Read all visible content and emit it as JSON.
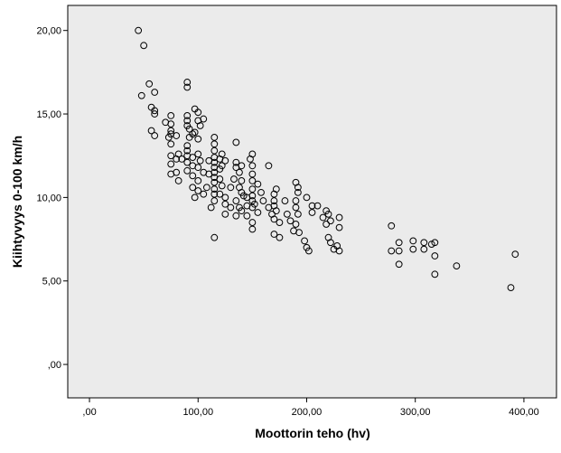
{
  "chart_data": {
    "type": "scatter",
    "xlabel": "Moottorin teho (hv)",
    "ylabel": "Kiihtyvyys 0-100 km/h",
    "xlim": [
      -20,
      430
    ],
    "ylim": [
      -2,
      21.5
    ],
    "x_ticks": [
      0,
      100,
      200,
      300,
      400
    ],
    "x_tick_labels": [
      ",00",
      "100,00",
      "200,00",
      "300,00",
      "400,00"
    ],
    "y_ticks": [
      0,
      5,
      10,
      15,
      20
    ],
    "y_tick_labels": [
      ",00",
      "5,00",
      "10,00",
      "15,00",
      "20,00"
    ],
    "grid": false,
    "colors": {
      "plot_background": "#ebebeb",
      "marker_stroke": "#000000",
      "frame": "#000000"
    },
    "series": [
      {
        "marker": "open-circle",
        "points": [
          [
            45,
            20.0
          ],
          [
            50,
            19.1
          ],
          [
            55,
            16.8
          ],
          [
            48,
            16.1
          ],
          [
            60,
            16.3
          ],
          [
            57,
            15.4
          ],
          [
            60,
            15.2
          ],
          [
            60,
            15.0
          ],
          [
            57,
            14.0
          ],
          [
            60,
            13.7
          ],
          [
            70,
            14.5
          ],
          [
            75,
            14.9
          ],
          [
            75,
            14.4
          ],
          [
            75,
            14.0
          ],
          [
            75,
            13.8
          ],
          [
            80,
            13.7
          ],
          [
            73,
            13.6
          ],
          [
            75,
            13.2
          ],
          [
            75,
            12.5
          ],
          [
            80,
            12.3
          ],
          [
            75,
            12.0
          ],
          [
            82,
            12.6
          ],
          [
            85,
            12.3
          ],
          [
            80,
            11.5
          ],
          [
            75,
            11.4
          ],
          [
            82,
            11.0
          ],
          [
            90,
            16.9
          ],
          [
            90,
            16.6
          ],
          [
            97,
            15.3
          ],
          [
            100,
            15.1
          ],
          [
            90,
            14.9
          ],
          [
            90,
            14.6
          ],
          [
            90,
            14.3
          ],
          [
            92,
            14.1
          ],
          [
            100,
            14.6
          ],
          [
            105,
            14.7
          ],
          [
            102,
            14.3
          ],
          [
            95,
            13.8
          ],
          [
            92,
            13.6
          ],
          [
            100,
            13.5
          ],
          [
            97,
            13.9
          ],
          [
            90,
            13.1
          ],
          [
            90,
            12.8
          ],
          [
            90,
            12.5
          ],
          [
            95,
            12.4
          ],
          [
            90,
            12.1
          ],
          [
            95,
            11.9
          ],
          [
            90,
            11.6
          ],
          [
            95,
            11.3
          ],
          [
            100,
            12.6
          ],
          [
            102,
            12.2
          ],
          [
            100,
            11.8
          ],
          [
            105,
            11.5
          ],
          [
            100,
            11.0
          ],
          [
            95,
            10.6
          ],
          [
            100,
            10.4
          ],
          [
            105,
            10.2
          ],
          [
            108,
            10.6
          ],
          [
            97,
            10.0
          ],
          [
            110,
            11.4
          ],
          [
            110,
            12.2
          ],
          [
            115,
            13.6
          ],
          [
            115,
            13.2
          ],
          [
            115,
            12.8
          ],
          [
            115,
            12.4
          ],
          [
            115,
            12.1
          ],
          [
            115,
            11.8
          ],
          [
            115,
            11.5
          ],
          [
            115,
            11.2
          ],
          [
            115,
            10.9
          ],
          [
            115,
            10.5
          ],
          [
            115,
            10.2
          ],
          [
            115,
            9.8
          ],
          [
            112,
            9.4
          ],
          [
            115,
            7.6
          ],
          [
            120,
            12.3
          ],
          [
            120,
            11.7
          ],
          [
            122,
            12.6
          ],
          [
            122,
            11.9
          ],
          [
            125,
            12.2
          ],
          [
            120,
            11.1
          ],
          [
            122,
            10.7
          ],
          [
            120,
            10.2
          ],
          [
            125,
            10.0
          ],
          [
            125,
            9.6
          ],
          [
            125,
            9.0
          ],
          [
            130,
            9.4
          ],
          [
            130,
            10.6
          ],
          [
            133,
            11.1
          ],
          [
            135,
            11.8
          ],
          [
            135,
            13.3
          ],
          [
            135,
            12.1
          ],
          [
            138,
            11.5
          ],
          [
            140,
            11.9
          ],
          [
            140,
            11.0
          ],
          [
            138,
            10.6
          ],
          [
            140,
            10.3
          ],
          [
            142,
            10.1
          ],
          [
            135,
            9.8
          ],
          [
            138,
            9.4
          ],
          [
            140,
            9.2
          ],
          [
            135,
            8.9
          ],
          [
            145,
            8.9
          ],
          [
            145,
            10.0
          ],
          [
            145,
            9.5
          ],
          [
            148,
            12.3
          ],
          [
            150,
            12.6
          ],
          [
            150,
            11.9
          ],
          [
            150,
            11.4
          ],
          [
            150,
            11.0
          ],
          [
            150,
            10.5
          ],
          [
            150,
            10.1
          ],
          [
            150,
            9.8
          ],
          [
            152,
            9.6
          ],
          [
            150,
            9.4
          ],
          [
            155,
            9.1
          ],
          [
            150,
            8.5
          ],
          [
            150,
            8.1
          ],
          [
            155,
            10.8
          ],
          [
            158,
            10.3
          ],
          [
            160,
            9.8
          ],
          [
            165,
            11.9
          ],
          [
            165,
            9.4
          ],
          [
            168,
            9.0
          ],
          [
            170,
            10.2
          ],
          [
            170,
            9.8
          ],
          [
            170,
            9.5
          ],
          [
            172,
            9.2
          ],
          [
            170,
            8.7
          ],
          [
            170,
            7.8
          ],
          [
            172,
            10.5
          ],
          [
            175,
            8.5
          ],
          [
            175,
            7.6
          ],
          [
            180,
            9.8
          ],
          [
            182,
            9.0
          ],
          [
            185,
            8.6
          ],
          [
            188,
            8.0
          ],
          [
            190,
            10.9
          ],
          [
            192,
            10.6
          ],
          [
            192,
            10.3
          ],
          [
            190,
            9.8
          ],
          [
            190,
            9.4
          ],
          [
            192,
            9.0
          ],
          [
            190,
            8.4
          ],
          [
            193,
            7.9
          ],
          [
            198,
            7.4
          ],
          [
            200,
            7.0
          ],
          [
            205,
            9.1
          ],
          [
            205,
            9.5
          ],
          [
            210,
            9.5
          ],
          [
            200,
            10.0
          ],
          [
            202,
            6.8
          ],
          [
            215,
            8.8
          ],
          [
            218,
            9.2
          ],
          [
            218,
            8.4
          ],
          [
            220,
            9.0
          ],
          [
            222,
            8.6
          ],
          [
            220,
            7.6
          ],
          [
            222,
            7.3
          ],
          [
            225,
            6.9
          ],
          [
            228,
            7.1
          ],
          [
            230,
            8.8
          ],
          [
            230,
            8.2
          ],
          [
            230,
            6.8
          ],
          [
            278,
            8.3
          ],
          [
            278,
            6.8
          ],
          [
            285,
            7.3
          ],
          [
            285,
            6.8
          ],
          [
            285,
            6.0
          ],
          [
            298,
            7.4
          ],
          [
            298,
            6.9
          ],
          [
            308,
            7.3
          ],
          [
            308,
            6.9
          ],
          [
            315,
            7.2
          ],
          [
            318,
            7.3
          ],
          [
            318,
            6.5
          ],
          [
            318,
            5.4
          ],
          [
            338,
            5.9
          ],
          [
            388,
            4.6
          ],
          [
            392,
            6.6
          ]
        ]
      }
    ]
  }
}
